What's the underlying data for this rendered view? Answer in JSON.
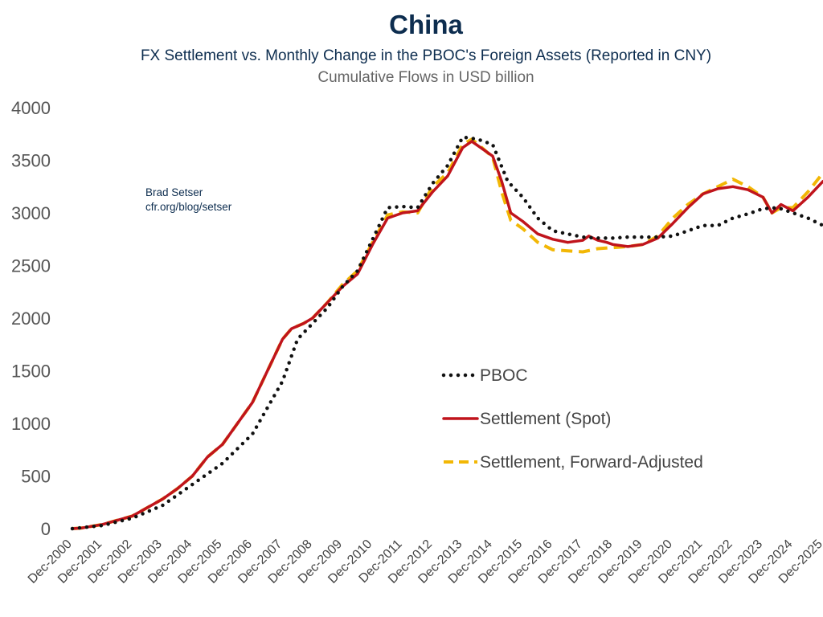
{
  "header": {
    "title": "China",
    "subtitle": "FX Settlement vs. Monthly Change in the PBOC's Foreign Assets (Reported in CNY)",
    "subtitle2": "Cumulative Flows in USD billion"
  },
  "credit": {
    "line1": "Brad Setser",
    "line2": "cfr.org/blog/setser"
  },
  "chart_data": {
    "type": "line",
    "title": "China",
    "subtitle": "FX Settlement vs. Monthly Change in the PBOC's Foreign Assets (Reported in CNY)",
    "ylabel": "Cumulative Flows in USD billion",
    "xlabel": "",
    "ylim": [
      0,
      4000
    ],
    "yticks": [
      "0",
      "500",
      "1000",
      "1500",
      "2000",
      "2500",
      "3000",
      "3500",
      "4000"
    ],
    "x_tick_labels": [
      "Dec-2000",
      "Dec-2001",
      "Dec-2002",
      "Dec-2003",
      "Dec-2004",
      "Dec-2005",
      "Dec-2006",
      "Dec-2007",
      "Dec-2008",
      "Dec-2009",
      "Dec-2010",
      "Dec-2011",
      "Dec-2012",
      "Dec-2013",
      "Dec-2014",
      "Dec-2015",
      "Dec-2016",
      "Dec-2017",
      "Dec-2018",
      "Dec-2019",
      "Dec-2020",
      "Dec-2021",
      "Dec-2022",
      "Dec-2023",
      "Dec-2024",
      "Dec-2025"
    ],
    "grid": false,
    "legend_position": "center-right",
    "series": [
      {
        "name": "PBOC",
        "style": "dotted",
        "color": "#111111",
        "points": [
          [
            2001.0,
            0
          ],
          [
            2002.0,
            30
          ],
          [
            2003.0,
            100
          ],
          [
            2004.0,
            220
          ],
          [
            2005.0,
            420
          ],
          [
            2006.0,
            620
          ],
          [
            2007.0,
            900
          ],
          [
            2008.0,
            1400
          ],
          [
            2008.5,
            1800
          ],
          [
            2009.0,
            1950
          ],
          [
            2009.5,
            2100
          ],
          [
            2010.0,
            2300
          ],
          [
            2010.5,
            2450
          ],
          [
            2011.0,
            2750
          ],
          [
            2011.5,
            3050
          ],
          [
            2012.0,
            3060
          ],
          [
            2012.5,
            3050
          ],
          [
            2013.0,
            3280
          ],
          [
            2013.5,
            3450
          ],
          [
            2014.0,
            3720
          ],
          [
            2014.5,
            3700
          ],
          [
            2015.0,
            3650
          ],
          [
            2015.5,
            3300
          ],
          [
            2016.0,
            3150
          ],
          [
            2016.5,
            2950
          ],
          [
            2017.0,
            2830
          ],
          [
            2017.5,
            2800
          ],
          [
            2018.0,
            2770
          ],
          [
            2018.5,
            2760
          ],
          [
            2019.0,
            2760
          ],
          [
            2019.5,
            2770
          ],
          [
            2020.0,
            2770
          ],
          [
            2020.5,
            2770
          ],
          [
            2021.0,
            2780
          ],
          [
            2021.5,
            2830
          ],
          [
            2022.0,
            2880
          ],
          [
            2022.5,
            2880
          ],
          [
            2023.0,
            2950
          ],
          [
            2023.5,
            2990
          ],
          [
            2024.0,
            3040
          ],
          [
            2024.5,
            3050
          ],
          [
            2025.0,
            3000
          ],
          [
            2025.5,
            2950
          ],
          [
            2026.0,
            2880
          ]
        ]
      },
      {
        "name": "Settlement (Spot)",
        "style": "solid",
        "color": "#c0141c",
        "points": [
          [
            2001.0,
            0
          ],
          [
            2001.3,
            5
          ],
          [
            2002.0,
            40
          ],
          [
            2003.0,
            120
          ],
          [
            2004.0,
            280
          ],
          [
            2004.5,
            380
          ],
          [
            2005.0,
            500
          ],
          [
            2005.5,
            680
          ],
          [
            2006.0,
            800
          ],
          [
            2006.5,
            1000
          ],
          [
            2007.0,
            1200
          ],
          [
            2007.5,
            1500
          ],
          [
            2008.0,
            1800
          ],
          [
            2008.3,
            1900
          ],
          [
            2008.7,
            1950
          ],
          [
            2009.0,
            2000
          ],
          [
            2009.5,
            2150
          ],
          [
            2010.0,
            2300
          ],
          [
            2010.5,
            2420
          ],
          [
            2011.0,
            2700
          ],
          [
            2011.5,
            2950
          ],
          [
            2012.0,
            3000
          ],
          [
            2012.5,
            3020
          ],
          [
            2013.0,
            3200
          ],
          [
            2013.5,
            3350
          ],
          [
            2014.0,
            3620
          ],
          [
            2014.3,
            3680
          ],
          [
            2014.6,
            3620
          ],
          [
            2015.0,
            3540
          ],
          [
            2015.3,
            3300
          ],
          [
            2015.6,
            3000
          ],
          [
            2016.0,
            2920
          ],
          [
            2016.5,
            2800
          ],
          [
            2017.0,
            2750
          ],
          [
            2017.5,
            2720
          ],
          [
            2018.0,
            2740
          ],
          [
            2018.2,
            2780
          ],
          [
            2018.5,
            2740
          ],
          [
            2018.8,
            2720
          ],
          [
            2019.0,
            2700
          ],
          [
            2019.5,
            2680
          ],
          [
            2020.0,
            2700
          ],
          [
            2020.5,
            2760
          ],
          [
            2021.0,
            2900
          ],
          [
            2021.5,
            3050
          ],
          [
            2022.0,
            3180
          ],
          [
            2022.5,
            3230
          ],
          [
            2023.0,
            3250
          ],
          [
            2023.5,
            3220
          ],
          [
            2024.0,
            3150
          ],
          [
            2024.3,
            3000
          ],
          [
            2024.6,
            3080
          ],
          [
            2025.0,
            3020
          ],
          [
            2025.5,
            3150
          ],
          [
            2026.0,
            3300
          ]
        ]
      },
      {
        "name": "Settlement, Forward-Adjusted",
        "style": "dashed",
        "color": "#f2b705",
        "points": [
          [
            2001.0,
            0
          ],
          [
            2001.3,
            5
          ],
          [
            2002.0,
            40
          ],
          [
            2003.0,
            120
          ],
          [
            2004.0,
            280
          ],
          [
            2004.5,
            380
          ],
          [
            2005.0,
            500
          ],
          [
            2005.5,
            680
          ],
          [
            2006.0,
            800
          ],
          [
            2006.5,
            1000
          ],
          [
            2007.0,
            1200
          ],
          [
            2007.5,
            1500
          ],
          [
            2008.0,
            1800
          ],
          [
            2008.3,
            1900
          ],
          [
            2008.7,
            1950
          ],
          [
            2009.0,
            2000
          ],
          [
            2009.5,
            2150
          ],
          [
            2010.0,
            2320
          ],
          [
            2010.5,
            2450
          ],
          [
            2011.0,
            2720
          ],
          [
            2011.5,
            2980
          ],
          [
            2012.0,
            3010
          ],
          [
            2012.5,
            3000
          ],
          [
            2013.0,
            3250
          ],
          [
            2013.5,
            3380
          ],
          [
            2014.0,
            3650
          ],
          [
            2014.3,
            3700
          ],
          [
            2014.6,
            3630
          ],
          [
            2015.0,
            3530
          ],
          [
            2015.3,
            3200
          ],
          [
            2015.6,
            2930
          ],
          [
            2016.0,
            2850
          ],
          [
            2016.5,
            2720
          ],
          [
            2017.0,
            2650
          ],
          [
            2017.5,
            2640
          ],
          [
            2018.0,
            2630
          ],
          [
            2018.5,
            2660
          ],
          [
            2019.0,
            2670
          ],
          [
            2019.5,
            2680
          ],
          [
            2020.0,
            2700
          ],
          [
            2020.5,
            2780
          ],
          [
            2021.0,
            2950
          ],
          [
            2021.5,
            3080
          ],
          [
            2022.0,
            3180
          ],
          [
            2022.5,
            3250
          ],
          [
            2023.0,
            3320
          ],
          [
            2023.5,
            3250
          ],
          [
            2024.0,
            3150
          ],
          [
            2024.3,
            3000
          ],
          [
            2024.6,
            3050
          ],
          [
            2025.0,
            3050
          ],
          [
            2025.5,
            3200
          ],
          [
            2026.0,
            3380
          ]
        ]
      }
    ]
  }
}
